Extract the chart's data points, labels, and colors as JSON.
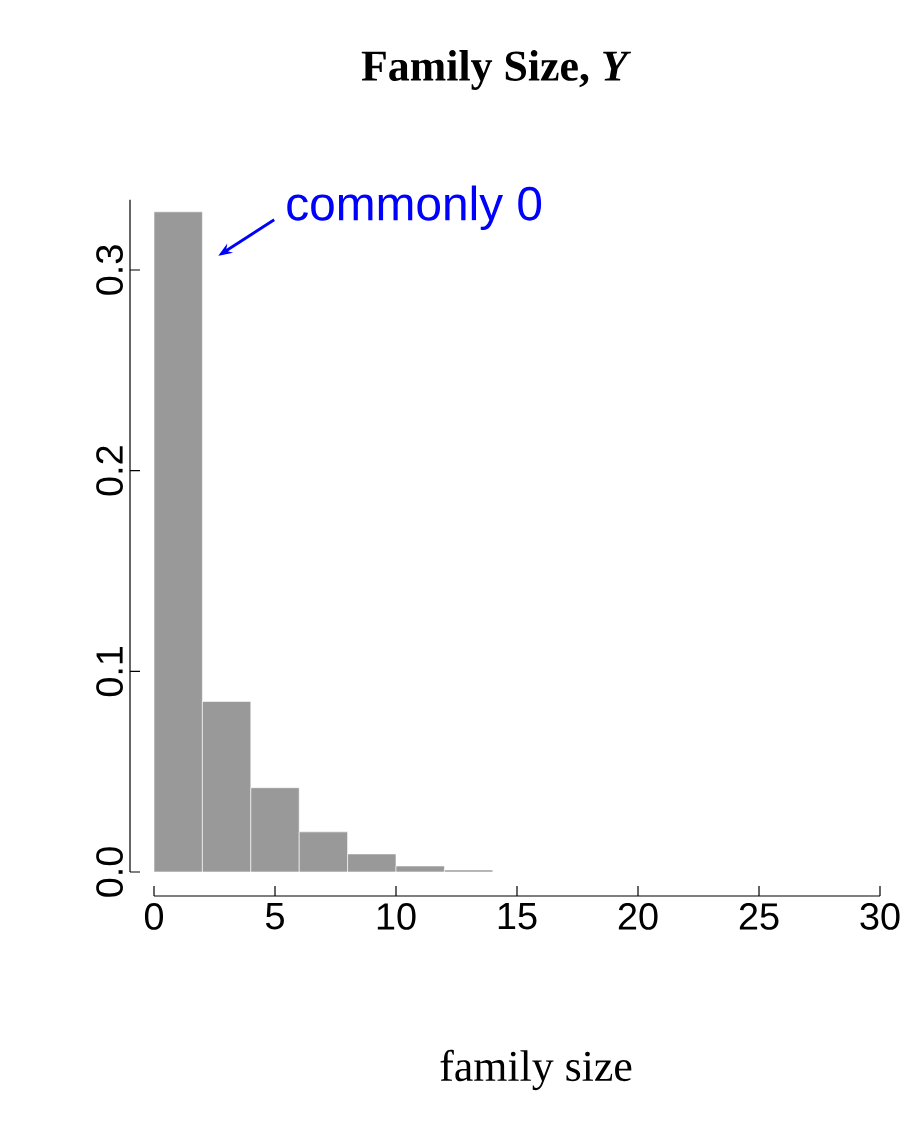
{
  "chart_data": {
    "type": "histogram",
    "title": "Family Size, *Y*",
    "xlabel": "family size",
    "bins": [
      0,
      2,
      4,
      6,
      8,
      10,
      12,
      14,
      16,
      18,
      20,
      22,
      24,
      26,
      28,
      30
    ],
    "values": [
      0.329,
      0.085,
      0.042,
      0.02,
      0.009,
      0.003,
      0.001,
      0,
      0,
      0,
      0,
      0,
      0,
      0,
      0
    ],
    "color": "#999999",
    "xlim": [
      0,
      30
    ],
    "ylim": [
      0,
      0.335
    ],
    "xticks": [
      0,
      5,
      10,
      15,
      20,
      25,
      30
    ],
    "yticks": [
      {
        "value": 0,
        "label": "0.0"
      },
      {
        "value": 0.1,
        "label": "0.1"
      },
      {
        "value": 0.2,
        "label": "0.2"
      },
      {
        "value": 0.3,
        "label": "0.3"
      }
    ],
    "annotations": [
      {
        "text": "commonly 0",
        "x": 1,
        "y": 0.329
      }
    ]
  }
}
